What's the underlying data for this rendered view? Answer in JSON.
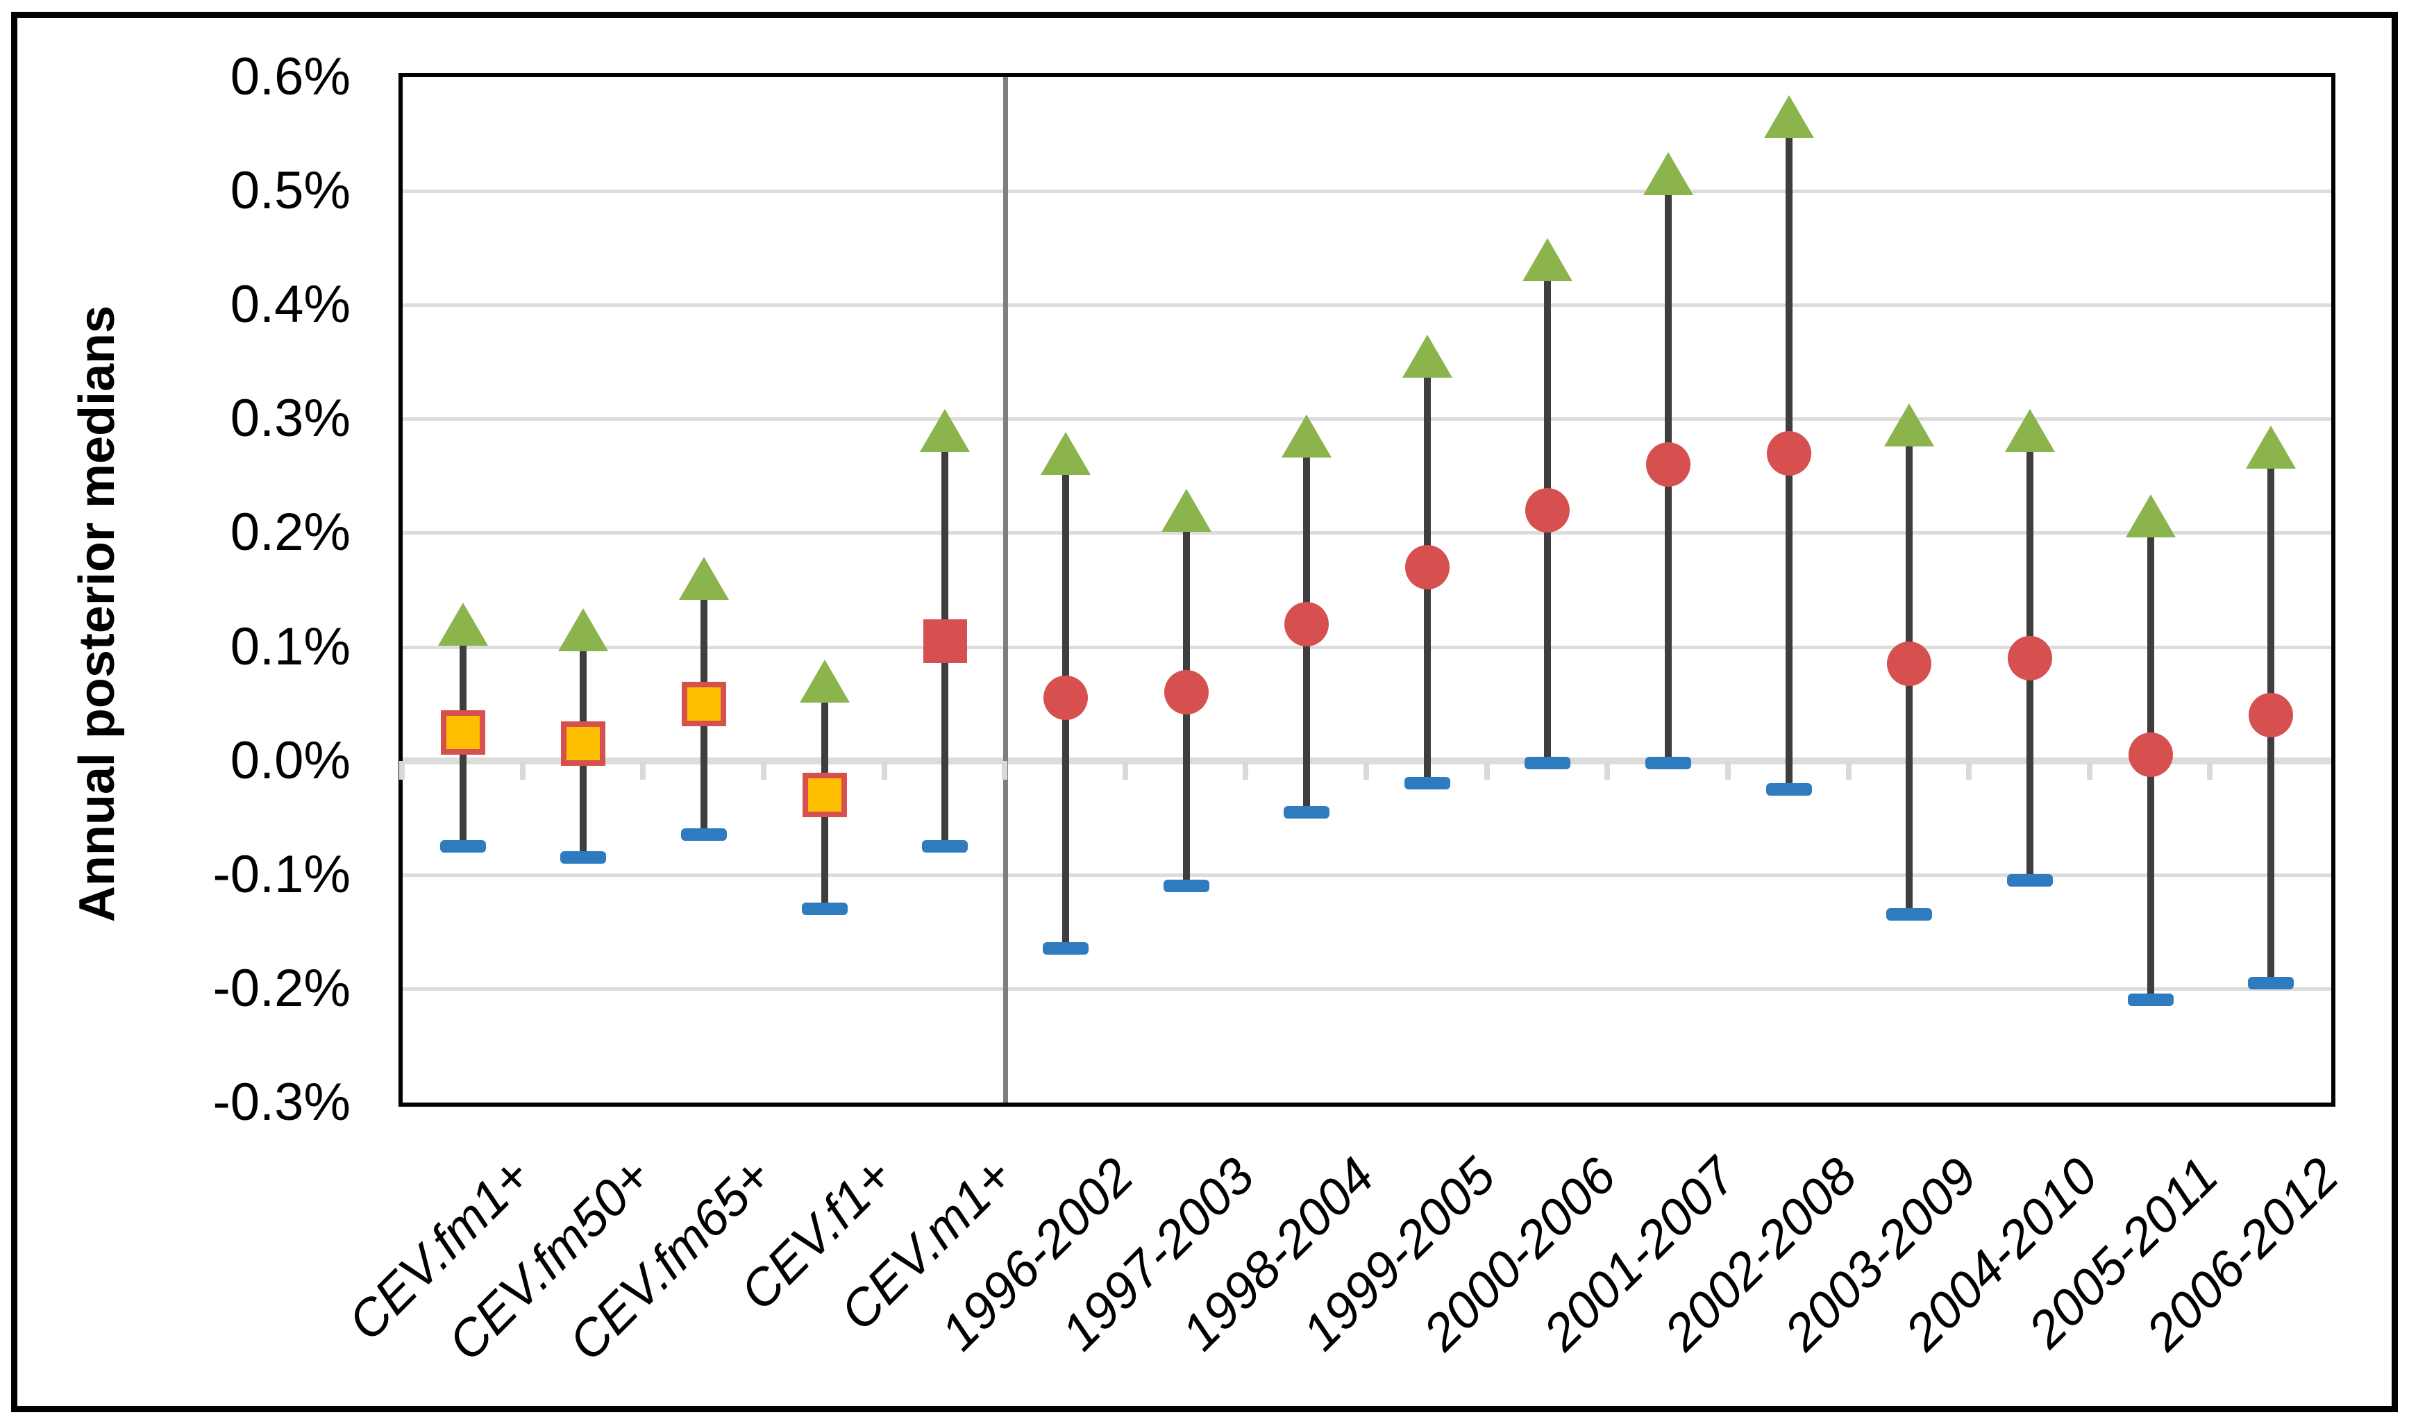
{
  "chart_data": {
    "type": "scatter",
    "subtype": "high-median-low error bars (stock-style chart)",
    "title": "",
    "xlabel": "",
    "ylabel": "Annual posterior medians",
    "y_unit": "%",
    "ylim": [
      -0.3,
      0.6
    ],
    "grid": "horizontal",
    "legend": "none",
    "y_ticks": [
      {
        "label": "0.6%",
        "value": 0.6
      },
      {
        "label": "0.5%",
        "value": 0.5
      },
      {
        "label": "0.4%",
        "value": 0.4
      },
      {
        "label": "0.3%",
        "value": 0.3
      },
      {
        "label": "0.2%",
        "value": 0.2
      },
      {
        "label": "0.1%",
        "value": 0.1
      },
      {
        "label": "0.0%",
        "value": 0.0
      },
      {
        "label": "-0.1%",
        "value": -0.1
      },
      {
        "label": "-0.2%",
        "value": -0.2
      },
      {
        "label": "-0.3%",
        "value": -0.3
      }
    ],
    "categories": [
      "CEV.fm1+",
      "CEV.fm50+",
      "CEV.fm65+",
      "CEV.f1+",
      "CEV.m1+",
      "1996-2002",
      "1997-2003",
      "1998-2004",
      "1999-2005",
      "2000-2006",
      "2001-2007",
      "2002-2008",
      "2003-2009",
      "2004-2010",
      "2005-2011",
      "2006-2012"
    ],
    "divider_after_category": "CEV.m1+",
    "series": [
      {
        "name": "upper bound",
        "marker": "triangle-up",
        "values": [
          0.12,
          0.115,
          0.16,
          0.07,
          0.29,
          0.27,
          0.22,
          0.285,
          0.355,
          0.44,
          0.515,
          0.565,
          0.295,
          0.29,
          0.215,
          0.275
        ]
      },
      {
        "name": "posterior median",
        "marker": "per-category",
        "values": [
          0.025,
          0.015,
          0.05,
          -0.03,
          0.105,
          0.055,
          0.06,
          0.12,
          0.17,
          0.22,
          0.26,
          0.27,
          0.085,
          0.09,
          0.005,
          0.04
        ]
      },
      {
        "name": "lower bound",
        "marker": "dash",
        "values": [
          -0.075,
          -0.085,
          -0.065,
          -0.13,
          -0.075,
          -0.165,
          -0.11,
          -0.045,
          -0.02,
          -0.002,
          -0.002,
          -0.025,
          -0.135,
          -0.105,
          -0.21,
          -0.195
        ]
      }
    ],
    "median_marker_by_category": [
      "square-orange",
      "square-orange",
      "square-orange",
      "square-orange",
      "square-red",
      "circle",
      "circle",
      "circle",
      "circle",
      "circle",
      "circle",
      "circle",
      "circle",
      "circle",
      "circle",
      "circle"
    ],
    "colors": {
      "triangle_green": "#8cb44d",
      "square_fill_orange": "#febf00",
      "square_border_red": "#d5504e",
      "median_red": "#d5504e",
      "dash_blue": "#2e7cbf",
      "stem_gray": "#3e3e3e",
      "gridline_gray": "#dcdcdc",
      "divider_gray": "#7f7f7f",
      "axis_black": "#000000"
    }
  }
}
